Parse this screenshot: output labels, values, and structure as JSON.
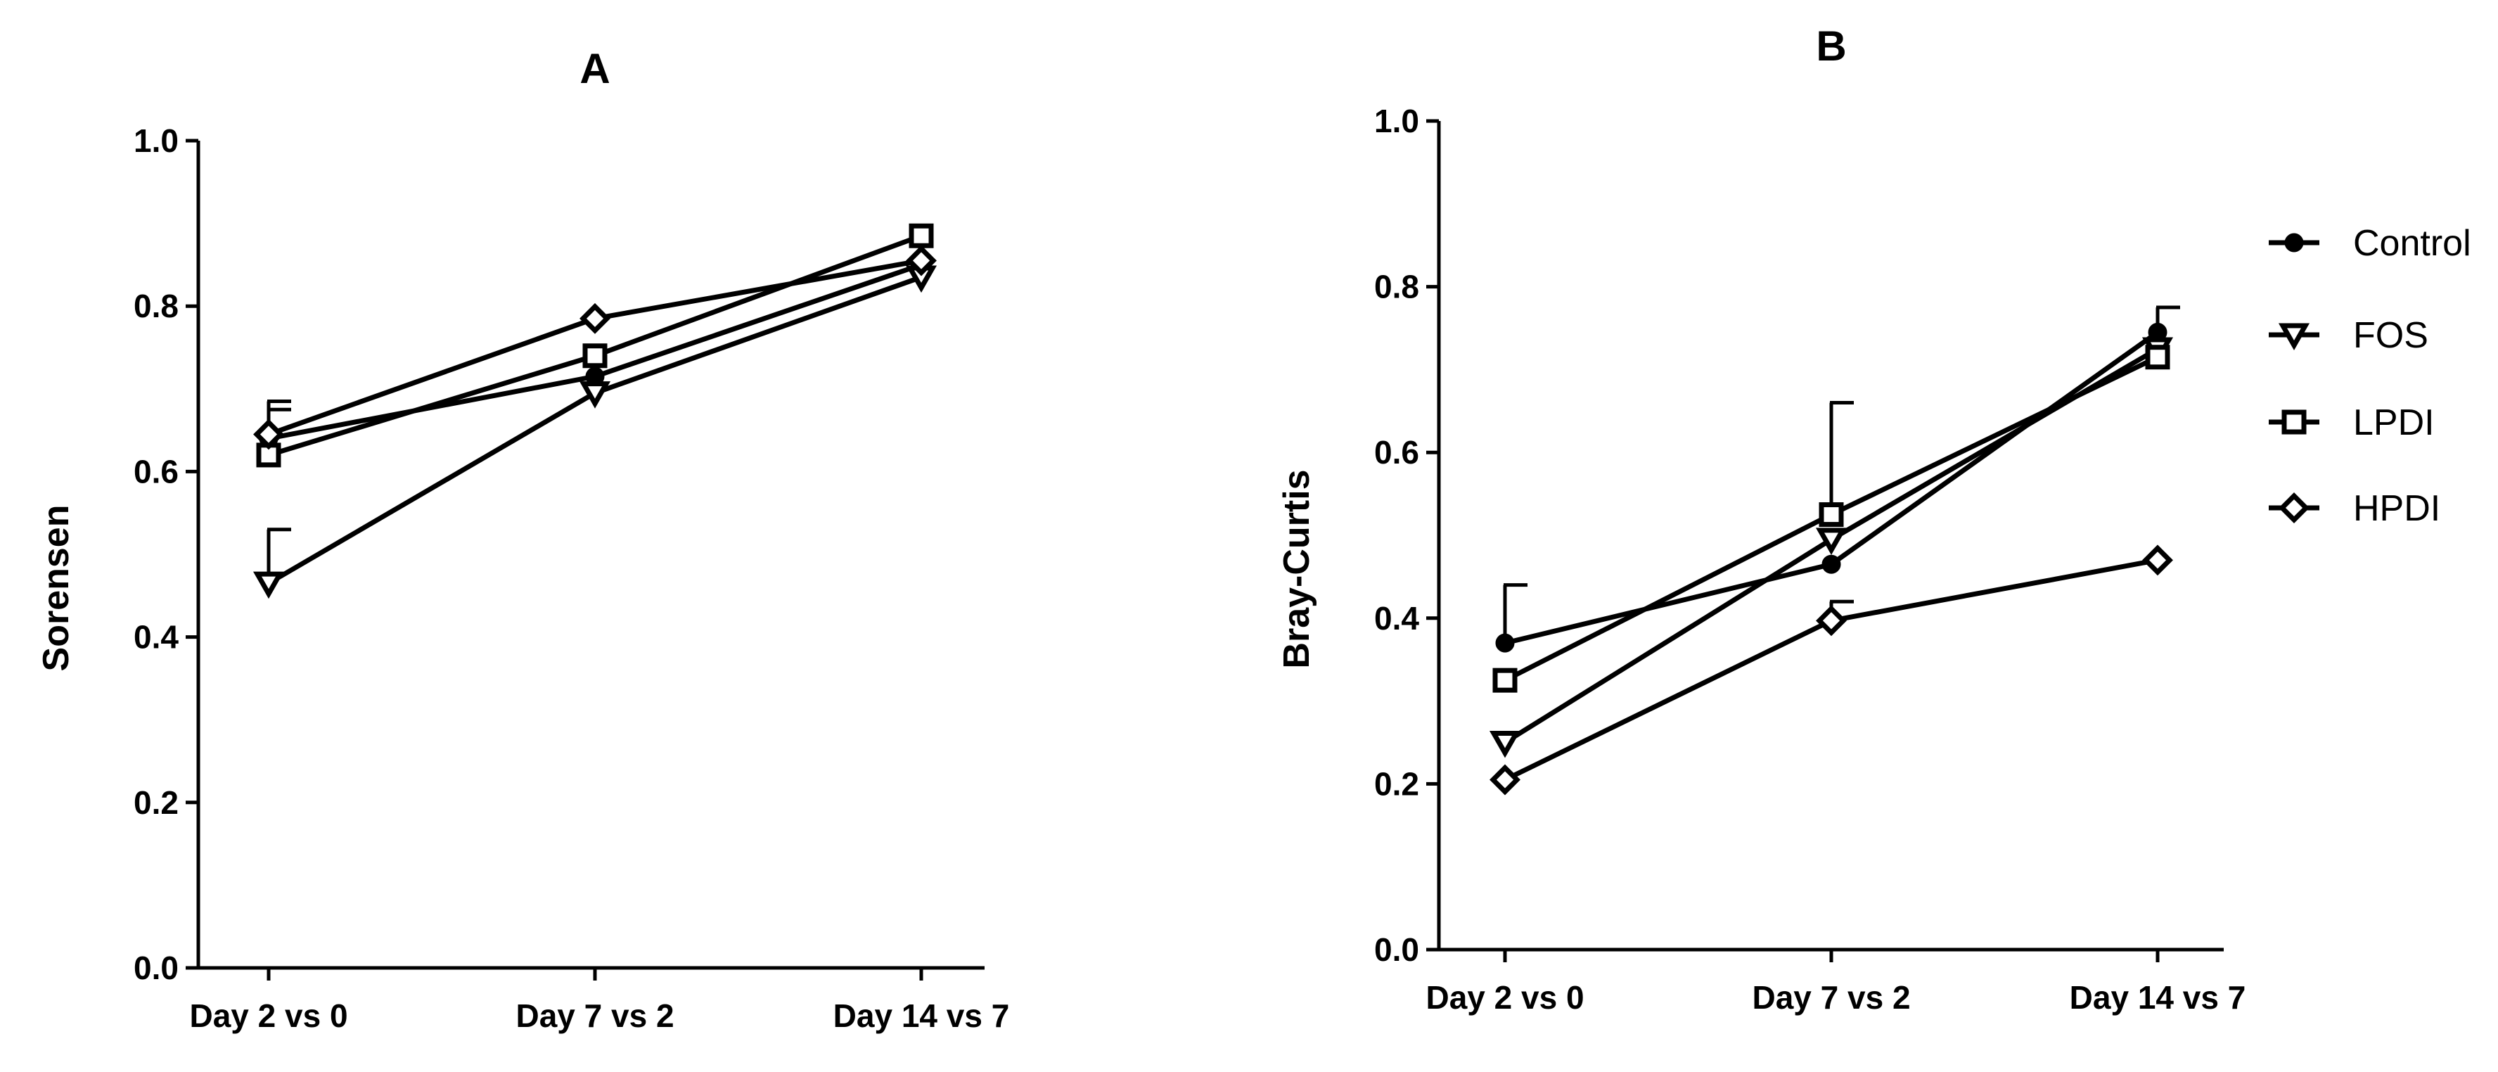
{
  "chart_data": [
    {
      "type": "line",
      "title": "A",
      "xlabel": "",
      "ylabel": "Sorensen",
      "categories": [
        "Day 2 vs 0",
        "Day 7 vs 2",
        "Day 14 vs 7"
      ],
      "ylim": [
        0.0,
        1.0
      ],
      "yticks": [
        "0.0",
        "0.2",
        "0.4",
        "0.6",
        "0.8",
        "1.0"
      ],
      "series": [
        {
          "name": "Control",
          "marker": "circle",
          "values": [
            0.64,
            0.715,
            0.85
          ],
          "err_upper": [
            0.685,
            null,
            null
          ]
        },
        {
          "name": "FOS",
          "marker": "triangle-down",
          "values": [
            0.465,
            0.695,
            0.835
          ],
          "err_upper": [
            0.53,
            null,
            null
          ]
        },
        {
          "name": "LPDI",
          "marker": "square",
          "values": [
            0.62,
            0.74,
            0.885
          ],
          "err_upper": [
            0.675,
            null,
            null
          ]
        },
        {
          "name": "HPDI",
          "marker": "diamond",
          "values": [
            0.645,
            0.785,
            0.855
          ],
          "err_upper": [
            null,
            null,
            null
          ]
        }
      ]
    },
    {
      "type": "line",
      "title": "B",
      "xlabel": "",
      "ylabel": "Bray-Curtis",
      "categories": [
        "Day 2 vs 0",
        "Day 7 vs 2",
        "Day 14 vs 7"
      ],
      "ylim": [
        0.0,
        1.0
      ],
      "yticks": [
        "0.0",
        "0.2",
        "0.4",
        "0.6",
        "0.8",
        "1.0"
      ],
      "series": [
        {
          "name": "Control",
          "marker": "circle",
          "values": [
            0.37,
            0.465,
            0.745
          ],
          "err_upper": [
            0.44,
            null,
            0.775
          ]
        },
        {
          "name": "FOS",
          "marker": "triangle-down",
          "values": [
            0.25,
            0.495,
            0.725
          ],
          "err_upper": [
            null,
            null,
            null
          ]
        },
        {
          "name": "LPDI",
          "marker": "square",
          "values": [
            0.325,
            0.525,
            0.715
          ],
          "err_upper": [
            null,
            0.66,
            null
          ]
        },
        {
          "name": "HPDI",
          "marker": "diamond",
          "values": [
            0.205,
            0.397,
            0.47
          ],
          "err_upper": [
            null,
            0.42,
            null
          ]
        }
      ]
    }
  ],
  "legend": {
    "position": "right",
    "items": [
      {
        "label": "Control",
        "marker": "circle"
      },
      {
        "label": "FOS",
        "marker": "triangle-down"
      },
      {
        "label": "LPDI",
        "marker": "square"
      },
      {
        "label": "HPDI",
        "marker": "diamond"
      }
    ]
  }
}
